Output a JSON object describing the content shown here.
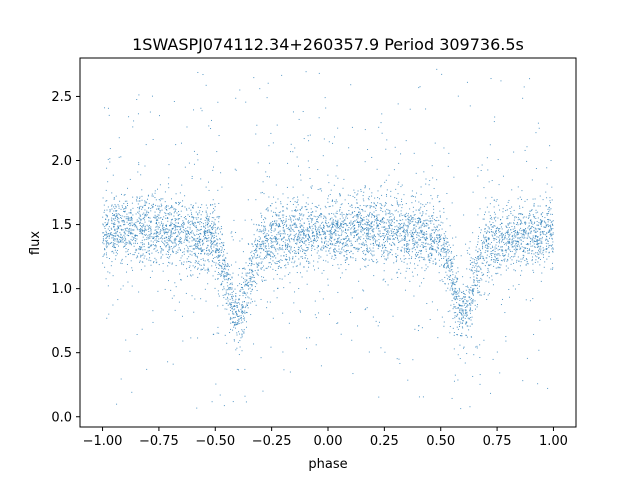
{
  "chart_data": {
    "type": "scatter",
    "title": "1SWASPJ074112.34+260357.9 Period 309736.5s",
    "xlabel": "phase",
    "ylabel": "flux",
    "xlim": [
      -1.1,
      1.1
    ],
    "ylim": [
      -0.08,
      2.8
    ],
    "xticks": [
      -1.0,
      -0.75,
      -0.5,
      -0.25,
      0.0,
      0.25,
      0.5,
      0.75,
      1.0
    ],
    "xtick_labels": [
      "−1.00",
      "−0.75",
      "−0.50",
      "−0.25",
      "0.00",
      "0.25",
      "0.50",
      "0.75",
      "1.00"
    ],
    "yticks": [
      0.0,
      0.5,
      1.0,
      1.5,
      2.0,
      2.5
    ],
    "ytick_labels": [
      "0.0",
      "0.5",
      "1.0",
      "1.5",
      "2.0",
      "2.5"
    ],
    "grid": false,
    "legend": false,
    "point_color": "#1f77b4",
    "baseline_flux": 1.42,
    "eclipse_phases": [
      -0.4,
      0.6
    ],
    "eclipse_min_flux": 0.85,
    "sample_points": [
      {
        "x": -1.0,
        "y": 1.42
      },
      {
        "x": -0.9,
        "y": 1.45
      },
      {
        "x": -0.8,
        "y": 1.46
      },
      {
        "x": -0.7,
        "y": 1.48
      },
      {
        "x": -0.6,
        "y": 1.45
      },
      {
        "x": -0.5,
        "y": 1.38
      },
      {
        "x": -0.45,
        "y": 1.2
      },
      {
        "x": -0.4,
        "y": 0.88
      },
      {
        "x": -0.35,
        "y": 1.2
      },
      {
        "x": -0.3,
        "y": 1.4
      },
      {
        "x": -0.2,
        "y": 1.46
      },
      {
        "x": -0.1,
        "y": 1.44
      },
      {
        "x": 0.0,
        "y": 1.42
      },
      {
        "x": 0.1,
        "y": 1.45
      },
      {
        "x": 0.2,
        "y": 1.46
      },
      {
        "x": 0.3,
        "y": 1.48
      },
      {
        "x": 0.4,
        "y": 1.45
      },
      {
        "x": 0.5,
        "y": 1.38
      },
      {
        "x": 0.55,
        "y": 1.2
      },
      {
        "x": 0.6,
        "y": 0.88
      },
      {
        "x": 0.65,
        "y": 1.2
      },
      {
        "x": 0.7,
        "y": 1.4
      },
      {
        "x": 0.8,
        "y": 1.46
      },
      {
        "x": 0.9,
        "y": 1.44
      },
      {
        "x": 1.0,
        "y": 1.42
      }
    ]
  }
}
